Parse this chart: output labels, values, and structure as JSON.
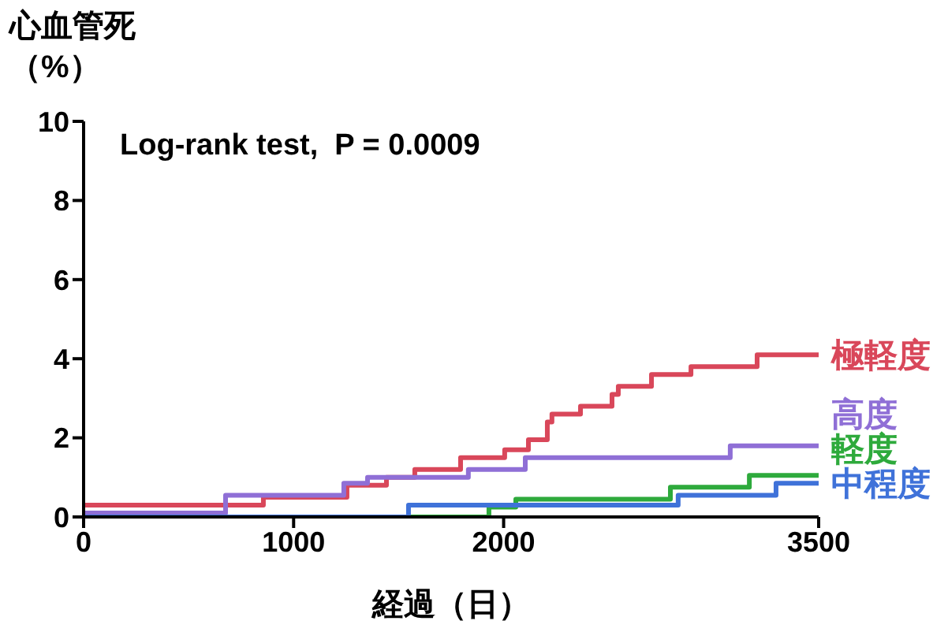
{
  "chart_data": {
    "type": "step",
    "ylabel": "心血管死（%）",
    "xlabel": "経過（日）",
    "annotations": [
      "Log-rank test,  P = 0.0009"
    ],
    "xlim": [
      0,
      3500
    ],
    "xticks": [
      0,
      1000,
      2000,
      3500
    ],
    "ylim": [
      0,
      10
    ],
    "yticks": [
      0,
      2,
      4,
      6,
      8,
      10
    ],
    "grid": false,
    "legend": false,
    "marker": "none",
    "line_style": "solid",
    "series": [
      {
        "name": "極軽度",
        "color": "#d9475a",
        "x": [
          0,
          856,
          1254,
          1442,
          1577,
          1795,
          2005,
          2118,
          2208,
          2230,
          2366,
          2516,
          2546,
          2704,
          2892,
          3207,
          3500
        ],
        "values": [
          0.3,
          0.5,
          0.8,
          1.0,
          1.2,
          1.5,
          1.7,
          1.95,
          2.4,
          2.6,
          2.8,
          3.1,
          3.3,
          3.6,
          3.8,
          4.1,
          4.1
        ]
      },
      {
        "name": "高度",
        "color": "#8f6fd6",
        "x": [
          0,
          676,
          1239,
          1352,
          1832,
          2103,
          3079,
          3500
        ],
        "values": [
          0.1,
          0.55,
          0.85,
          1.0,
          1.2,
          1.5,
          1.8,
          1.8
        ]
      },
      {
        "name": "軽度",
        "color": "#2eaa3c",
        "x": [
          0,
          1930,
          2058,
          2794,
          3170,
          3500
        ],
        "values": [
          0,
          0.25,
          0.45,
          0.75,
          1.05,
          1.05
        ]
      },
      {
        "name": "中程度",
        "color": "#3f72d9",
        "x": [
          0,
          1547,
          2831,
          3297,
          3500
        ],
        "values": [
          0,
          0.3,
          0.55,
          0.85,
          0.85
        ]
      }
    ]
  }
}
